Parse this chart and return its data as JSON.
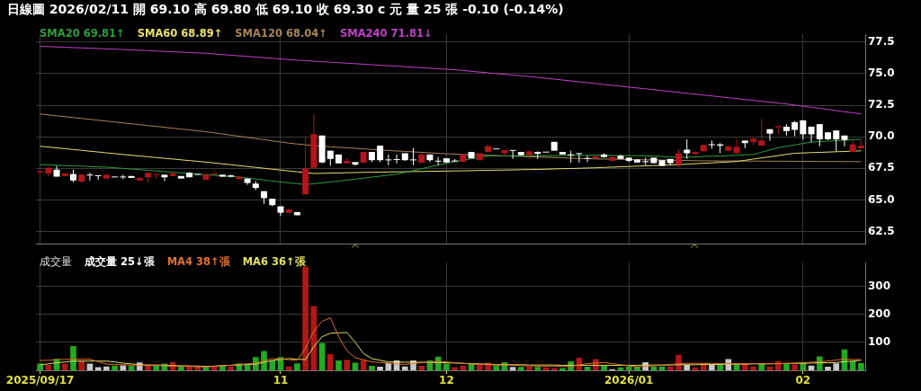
{
  "chart_data": [
    {
      "type": "candlestick",
      "title": "日線圖 2026/02/11 開 69.10 高 69.80 低 69.10 收 69.30 c 元 量 25 張 -0.10 (-0.14%)",
      "categories": [
        "2025/09/17",
        null,
        null,
        null,
        null,
        null,
        null,
        null,
        null,
        null,
        null,
        null,
        null,
        null,
        null,
        null,
        null,
        null,
        null,
        null,
        null,
        null,
        null,
        null,
        null,
        null,
        null,
        null,
        null,
        "11",
        null,
        null,
        null,
        null,
        null,
        null,
        null,
        null,
        null,
        null,
        null,
        null,
        null,
        null,
        null,
        null,
        null,
        null,
        null,
        "12",
        null,
        null,
        null,
        null,
        null,
        null,
        null,
        null,
        null,
        null,
        null,
        null,
        null,
        null,
        null,
        null,
        null,
        null,
        null,
        null,
        null,
        "2026/01",
        null,
        null,
        null,
        null,
        null,
        null,
        null,
        null,
        null,
        null,
        null,
        null,
        null,
        null,
        null,
        null,
        null,
        null,
        null,
        null,
        "02",
        null,
        null,
        null,
        null,
        null,
        null,
        null
      ],
      "ohlc": [
        [
          67.2,
          67.3,
          67.1,
          67.3
        ],
        [
          67.1,
          67.6,
          66.9,
          67.55
        ],
        [
          67.4,
          67.7,
          66.85,
          66.85
        ],
        [
          66.9,
          67.1,
          66.9,
          67.1
        ],
        [
          67.05,
          67.4,
          66.4,
          66.55
        ],
        [
          66.45,
          67.1,
          66.4,
          67.0
        ],
        [
          67.0,
          67.15,
          66.55,
          66.95
        ],
        [
          66.95,
          66.95,
          66.6,
          66.9
        ],
        [
          66.7,
          67.0,
          66.7,
          67.0
        ],
        [
          66.85,
          66.85,
          66.8,
          66.8
        ],
        [
          66.85,
          67.0,
          66.65,
          66.8
        ],
        [
          66.9,
          66.9,
          66.75,
          66.75
        ],
        [
          66.55,
          66.8,
          66.5,
          66.75
        ],
        [
          66.8,
          67.2,
          66.4,
          67.15
        ],
        [
          67.0,
          67.1,
          66.7,
          67.05
        ],
        [
          67.0,
          67.0,
          66.5,
          66.8
        ],
        [
          66.9,
          67.2,
          66.9,
          67.1
        ],
        [
          66.9,
          66.9,
          66.7,
          66.7
        ],
        [
          67.15,
          67.2,
          66.8,
          66.8
        ],
        [
          67.05,
          67.05,
          67.0,
          67.0
        ],
        [
          66.6,
          67.15,
          66.6,
          67.0
        ],
        [
          67.0,
          67.1,
          67.0,
          67.1
        ],
        [
          67.0,
          67.0,
          66.85,
          66.85
        ],
        [
          66.95,
          67.0,
          66.8,
          66.85
        ],
        [
          66.65,
          66.9,
          66.65,
          66.85
        ],
        [
          66.7,
          66.7,
          66.2,
          66.35
        ],
        [
          66.3,
          66.5,
          65.8,
          65.95
        ],
        [
          65.7,
          65.7,
          64.7,
          65.15
        ],
        [
          65.1,
          65.1,
          64.5,
          64.6
        ],
        [
          64.5,
          64.5,
          63.75,
          64.0
        ],
        [
          64.0,
          64.3,
          64.0,
          64.25
        ],
        [
          64.05,
          64.05,
          63.8,
          63.8
        ],
        [
          65.45,
          70.0,
          65.45,
          67.5
        ],
        [
          67.55,
          71.8,
          67.5,
          70.2
        ],
        [
          70.1,
          70.1,
          67.9,
          67.97
        ],
        [
          68.9,
          68.9,
          67.7,
          68.25
        ],
        [
          68.6,
          68.6,
          67.9,
          67.9
        ],
        [
          67.9,
          68.3,
          67.9,
          68.1
        ],
        [
          68.0,
          68.0,
          67.7,
          67.8
        ],
        [
          67.95,
          68.8,
          67.95,
          68.8
        ],
        [
          68.8,
          68.8,
          68.0,
          68.15
        ],
        [
          69.3,
          69.3,
          68.0,
          68.15
        ],
        [
          68.2,
          68.6,
          67.75,
          68.15
        ],
        [
          68.2,
          68.6,
          67.9,
          68.2
        ],
        [
          68.7,
          68.7,
          68.1,
          68.15
        ],
        [
          68.2,
          69.1,
          67.75,
          68.15
        ],
        [
          67.95,
          68.7,
          67.95,
          68.6
        ],
        [
          68.6,
          68.6,
          68.0,
          68.15
        ],
        [
          68.1,
          68.4,
          67.75,
          68.05
        ],
        [
          68.3,
          68.3,
          67.97,
          67.97
        ],
        [
          68.1,
          68.25,
          68.0,
          68.07
        ],
        [
          68.03,
          68.6,
          68.0,
          68.6
        ],
        [
          68.8,
          68.8,
          68.3,
          68.3
        ],
        [
          68.15,
          68.7,
          68.15,
          68.7
        ],
        [
          68.8,
          69.4,
          68.8,
          69.25
        ],
        [
          69.05,
          69.05,
          69.0,
          69.03
        ],
        [
          68.7,
          68.95,
          68.5,
          68.95
        ],
        [
          68.95,
          68.95,
          68.25,
          68.9
        ],
        [
          68.8,
          68.8,
          68.5,
          68.55
        ],
        [
          68.55,
          68.9,
          68.3,
          68.85
        ],
        [
          68.8,
          68.85,
          68.25,
          68.65
        ],
        [
          68.8,
          68.85,
          68.75,
          68.78
        ],
        [
          69.6,
          69.6,
          68.9,
          68.9
        ],
        [
          68.8,
          68.8,
          68.6,
          68.6
        ],
        [
          68.6,
          68.9,
          67.95,
          68.55
        ],
        [
          68.7,
          68.7,
          67.95,
          68.65
        ],
        [
          68.3,
          68.5,
          68.0,
          68.28
        ],
        [
          68.3,
          68.5,
          68.3,
          68.45
        ],
        [
          68.6,
          68.7,
          68.35,
          68.4
        ],
        [
          68.1,
          68.4,
          68.1,
          68.4
        ],
        [
          68.5,
          68.6,
          68.25,
          68.25
        ],
        [
          68.35,
          68.35,
          68.0,
          68.1
        ],
        [
          68.2,
          68.25,
          67.95,
          67.97
        ],
        [
          68.05,
          68.35,
          67.75,
          68.02
        ],
        [
          68.35,
          68.35,
          67.92,
          67.92
        ],
        [
          68.15,
          68.15,
          67.7,
          67.7
        ],
        [
          68.25,
          68.25,
          67.75,
          67.92
        ],
        [
          67.82,
          69.0,
          67.6,
          68.7
        ],
        [
          68.98,
          69.8,
          68.25,
          68.7
        ],
        [
          68.63,
          68.85,
          68.6,
          68.8
        ],
        [
          68.85,
          69.35,
          68.85,
          69.35
        ],
        [
          69.4,
          69.7,
          69.05,
          69.35
        ],
        [
          69.4,
          69.5,
          68.7,
          69.3
        ],
        [
          68.9,
          69.25,
          68.9,
          69.25
        ],
        [
          68.7,
          69.8,
          68.7,
          69.2
        ],
        [
          69.7,
          69.7,
          69.1,
          69.5
        ],
        [
          69.6,
          69.95,
          69.35,
          69.85
        ],
        [
          69.3,
          71.4,
          69.3,
          69.7
        ],
        [
          70.6,
          70.6,
          69.7,
          70.25
        ],
        [
          70.75,
          70.85,
          70.2,
          70.85
        ],
        [
          70.8,
          71.0,
          70.1,
          70.45
        ],
        [
          71.15,
          71.25,
          70.05,
          70.55
        ],
        [
          71.3,
          71.3,
          69.8,
          70.2
        ],
        [
          70.8,
          70.8,
          69.6,
          70.2
        ],
        [
          71.0,
          71.0,
          69.25,
          69.8
        ],
        [
          70.35,
          70.35,
          69.75,
          69.8
        ],
        [
          70.5,
          70.5,
          68.85,
          69.8
        ],
        [
          70.1,
          70.1,
          69.25,
          69.75
        ],
        [
          68.8,
          69.7,
          68.8,
          69.4
        ],
        [
          69.1,
          69.8,
          69.1,
          69.3
        ]
      ],
      "colors": [
        "#b4141c",
        "#b4141c",
        "#ffffff",
        "#b4141c",
        "#ffffff",
        "#b4141c",
        "#ffffff",
        "#ffffff",
        "#b4141c",
        "#ffffff",
        "#ffffff",
        "#ffffff",
        "#b4141c",
        "#b4141c",
        "#b4141c",
        "#ffffff",
        "#b4141c",
        "#ffffff",
        "#ffffff",
        "#ffffff",
        "#b4141c",
        "#b4141c",
        "#ffffff",
        "#ffffff",
        "#b4141c",
        "#ffffff",
        "#ffffff",
        "#ffffff",
        "#ffffff",
        "#ffffff",
        "#b4141c",
        "#ffffff",
        "#b4141c",
        "#b4141c",
        "#ffffff",
        "#ffffff",
        "#ffffff",
        "#b4141c",
        "#ffffff",
        "#b4141c",
        "#ffffff",
        "#ffffff",
        "#ffffff",
        "#ffffff",
        "#ffffff",
        "#ffffff",
        "#b4141c",
        "#ffffff",
        "#ffffff",
        "#ffffff",
        "#ffffff",
        "#b4141c",
        "#ffffff",
        "#b4141c",
        "#b4141c",
        "#ffffff",
        "#b4141c",
        "#ffffff",
        "#ffffff",
        "#b4141c",
        "#ffffff",
        "#ffffff",
        "#ffffff",
        "#ffffff",
        "#ffffff",
        "#ffffff",
        "#ffffff",
        "#b4141c",
        "#ffffff",
        "#b4141c",
        "#ffffff",
        "#ffffff",
        "#ffffff",
        "#ffffff",
        "#ffffff",
        "#ffffff",
        "#ffffff",
        "#b4141c",
        "#ffffff",
        "#b4141c",
        "#b4141c",
        "#ffffff",
        "#ffffff",
        "#b4141c",
        "#b4141c",
        "#ffffff",
        "#b4141c",
        "#b4141c",
        "#ffffff",
        "#b4141c",
        "#ffffff",
        "#ffffff",
        "#ffffff",
        "#ffffff",
        "#ffffff",
        "#ffffff",
        "#ffffff",
        "#ffffff",
        "#b4141c",
        "#b4141c"
      ],
      "series": [
        {
          "name": "SMA20 69.81↑",
          "type": "line",
          "color": "#2e9e3e",
          "values": [
            67.8,
            67.78,
            67.75,
            67.72,
            67.7,
            67.68,
            67.65,
            67.62,
            67.6,
            67.55,
            67.5,
            67.45,
            67.4,
            67.35,
            67.3,
            67.25,
            67.2,
            67.15,
            67.1,
            67.05,
            67.0,
            66.95,
            66.9,
            66.86,
            66.82,
            66.74,
            66.66,
            66.58,
            66.5,
            66.43,
            66.36,
            66.29,
            66.22,
            66.29,
            66.36,
            66.43,
            66.5,
            66.58,
            66.65,
            66.73,
            66.81,
            66.89,
            66.96,
            67.04,
            67.19,
            67.33,
            67.48,
            67.62,
            67.76,
            67.9,
            68.04,
            68.15,
            68.26,
            68.37,
            68.48,
            68.48,
            68.49,
            68.49,
            68.5,
            68.5,
            68.5,
            68.51,
            68.51,
            68.52,
            68.52,
            68.53,
            68.53,
            68.54,
            68.53,
            68.52,
            68.51,
            68.51,
            68.5,
            68.49,
            68.48,
            68.44,
            68.41,
            68.37,
            68.39,
            68.41,
            68.44,
            68.46,
            68.48,
            68.51,
            68.54,
            68.57,
            68.6,
            68.78,
            68.96,
            69.14,
            69.25,
            69.36,
            69.47,
            69.58,
            69.62,
            69.66,
            69.7,
            69.73,
            69.77,
            69.81
          ]
        },
        {
          "name": "SMA60 68.89↑",
          "type": "line",
          "color": "#e8e070",
          "values": [
            69.25,
            69.19,
            69.12,
            69.06,
            68.99,
            68.93,
            68.86,
            68.8,
            68.73,
            68.67,
            68.6,
            68.54,
            68.48,
            68.42,
            68.36,
            68.3,
            68.24,
            68.18,
            68.12,
            68.06,
            68.0,
            67.93,
            67.86,
            67.79,
            67.72,
            67.65,
            67.58,
            67.51,
            67.44,
            67.37,
            67.3,
            67.23,
            67.17,
            67.1,
            67.11,
            67.13,
            67.14,
            67.16,
            67.17,
            67.19,
            67.2,
            67.21,
            67.22,
            67.23,
            67.24,
            67.25,
            67.26,
            67.27,
            67.28,
            67.29,
            67.3,
            67.31,
            67.32,
            67.34,
            67.35,
            67.36,
            67.37,
            67.38,
            67.4,
            67.41,
            67.42,
            67.44,
            67.46,
            67.48,
            67.49,
            67.51,
            67.53,
            67.55,
            67.58,
            67.6,
            67.63,
            67.65,
            67.68,
            67.7,
            67.73,
            67.75,
            67.78,
            67.8,
            67.84,
            67.87,
            67.91,
            67.94,
            67.98,
            68.01,
            68.05,
            68.14,
            68.24,
            68.33,
            68.42,
            68.51,
            68.61,
            68.7,
            68.72,
            68.75,
            68.77,
            68.79,
            68.82,
            68.84,
            68.87,
            68.89
          ]
        },
        {
          "name": "SMA120 68.04↑",
          "type": "line",
          "color": "#a8845c",
          "values": [
            71.8,
            71.73,
            71.66,
            71.59,
            71.52,
            71.45,
            71.38,
            71.31,
            71.24,
            71.17,
            71.1,
            71.03,
            70.96,
            70.89,
            70.82,
            70.75,
            70.68,
            70.61,
            70.54,
            70.47,
            70.4,
            70.31,
            70.22,
            70.13,
            70.04,
            69.95,
            69.86,
            69.77,
            69.68,
            69.59,
            69.5,
            69.43,
            69.37,
            69.3,
            69.26,
            69.21,
            69.17,
            69.13,
            69.09,
            69.04,
            69.0,
            68.96,
            68.92,
            68.88,
            68.84,
            68.81,
            68.77,
            68.73,
            68.69,
            68.65,
            68.63,
            68.6,
            68.58,
            68.56,
            68.54,
            68.52,
            68.49,
            68.47,
            68.45,
            68.42,
            68.4,
            68.38,
            68.36,
            68.34,
            68.31,
            68.29,
            68.27,
            68.25,
            68.24,
            68.23,
            68.22,
            68.2,
            68.19,
            68.18,
            68.17,
            68.16,
            68.15,
            68.13,
            68.12,
            68.11,
            68.1,
            68.1,
            68.09,
            68.09,
            68.09,
            68.08,
            68.08,
            68.08,
            68.07,
            68.07,
            68.07,
            68.06,
            68.06,
            68.06,
            68.05,
            68.05,
            68.05,
            68.04,
            68.04,
            68.04
          ]
        },
        {
          "name": "SMA240 71.81↓",
          "type": "line",
          "color": "#c040c8",
          "values": [
            77.15,
            77.13,
            77.1,
            77.08,
            77.05,
            77.03,
            77.0,
            76.98,
            76.95,
            76.93,
            76.9,
            76.87,
            76.84,
            76.81,
            76.78,
            76.75,
            76.72,
            76.69,
            76.66,
            76.63,
            76.6,
            76.55,
            76.5,
            76.45,
            76.4,
            76.35,
            76.3,
            76.25,
            76.2,
            76.15,
            76.1,
            76.06,
            76.02,
            75.98,
            75.94,
            75.9,
            75.86,
            75.82,
            75.78,
            75.74,
            75.7,
            75.66,
            75.62,
            75.58,
            75.54,
            75.5,
            75.46,
            75.42,
            75.38,
            75.34,
            75.3,
            75.24,
            75.18,
            75.12,
            75.06,
            75.0,
            74.94,
            74.88,
            74.82,
            74.76,
            74.7,
            74.63,
            74.56,
            74.49,
            74.42,
            74.35,
            74.28,
            74.21,
            74.14,
            74.07,
            74.0,
            73.93,
            73.86,
            73.79,
            73.72,
            73.65,
            73.58,
            73.51,
            73.44,
            73.37,
            73.3,
            73.23,
            73.16,
            73.09,
            73.02,
            72.95,
            72.88,
            72.81,
            72.74,
            72.67,
            72.6,
            72.51,
            72.42,
            72.34,
            72.25,
            72.16,
            72.07,
            71.98,
            71.9,
            71.81
          ]
        }
      ],
      "ylim": [
        61.5,
        78.1
      ],
      "yticks": [
        {
          "value": 62.5,
          "label": "62.5"
        },
        {
          "value": 65,
          "label": "65.0"
        },
        {
          "value": 67.5,
          "label": "67.5"
        },
        {
          "value": 70,
          "label": "70.0"
        },
        {
          "value": 72.5,
          "label": "72.5"
        },
        {
          "value": 75,
          "label": "75.0"
        },
        {
          "value": 77.5,
          "label": "77.5"
        }
      ],
      "grid": true,
      "legend": "top left",
      "tick_labels": "y"
    },
    {
      "type": "bar",
      "title": "成交量",
      "annotations": [
        "成交量 25↓張"
      ],
      "categories": [
        "2025/09/17",
        null,
        null,
        null,
        null,
        null,
        null,
        null,
        null,
        null,
        null,
        null,
        null,
        null,
        null,
        null,
        null,
        null,
        null,
        null,
        null,
        null,
        null,
        null,
        null,
        null,
        null,
        null,
        null,
        "11",
        null,
        null,
        null,
        null,
        null,
        null,
        null,
        null,
        null,
        null,
        null,
        null,
        null,
        null,
        null,
        null,
        null,
        null,
        null,
        "12",
        null,
        null,
        null,
        null,
        null,
        null,
        null,
        null,
        null,
        null,
        null,
        null,
        null,
        null,
        null,
        null,
        null,
        null,
        null,
        null,
        null,
        "2026/01",
        null,
        null,
        null,
        null,
        null,
        null,
        null,
        null,
        null,
        null,
        null,
        null,
        null,
        null,
        null,
        null,
        null,
        null,
        null,
        null,
        "02",
        null,
        null,
        null,
        null,
        null,
        null,
        null
      ],
      "series": [
        {
          "type": "bar",
          "values": [
            23,
            18,
            40,
            23,
            86,
            34,
            23,
            10,
            13,
            16,
            17,
            16,
            27,
            19,
            15,
            23,
            29,
            14,
            12,
            15,
            10,
            13,
            15,
            13,
            24,
            19,
            46,
            68,
            34,
            46,
            13,
            24,
            370,
            229,
            97,
            57,
            34,
            37,
            26,
            36,
            15,
            12,
            25,
            34,
            13,
            34,
            15,
            34,
            48,
            23,
            10,
            16,
            22,
            20,
            26,
            17,
            28,
            11,
            11,
            13,
            11,
            9,
            7,
            7,
            31,
            44,
            12,
            39,
            16,
            3,
            9,
            13,
            13,
            28,
            13,
            13,
            13,
            54,
            18,
            9,
            24,
            18,
            20,
            39,
            20,
            23,
            13,
            24,
            13,
            32,
            26,
            20,
            28,
            16,
            49,
            12,
            24,
            74,
            31,
            25
          ],
          "colors": [
            "#22aa22",
            "#b01818",
            "#22aa22",
            "#b01818",
            "#22aa22",
            "#b01818",
            "#c8c8c8",
            "#c8c8c8",
            "#c8c8c8",
            "#22aa22",
            "#c8c8c8",
            "#22aa22",
            "#c8c8c8",
            "#b01818",
            "#22aa22",
            "#22aa22",
            "#b01818",
            "#22aa22",
            "#b01818",
            "#b01818",
            "#22aa22",
            "#b01818",
            "#22aa22",
            "#b01818",
            "#22aa22",
            "#22aa22",
            "#22aa22",
            "#22aa22",
            "#22aa22",
            "#22aa22",
            "#b01818",
            "#22aa22",
            "#b01818",
            "#b01818",
            "#22aa22",
            "#b01818",
            "#22aa22",
            "#b01818",
            "#22aa22",
            "#b01818",
            "#22aa22",
            "#c8c8c8",
            "#c8c8c8",
            "#c8c8c8",
            "#c8c8c8",
            "#c8c8c8",
            "#b01818",
            "#22aa22",
            "#22aa22",
            "#22aa22",
            "#b01818",
            "#b01818",
            "#22aa22",
            "#b01818",
            "#b01818",
            "#22aa22",
            "#22aa22",
            "#c8c8c8",
            "#22aa22",
            "#b01818",
            "#22aa22",
            "#b01818",
            "#b01818",
            "#22aa22",
            "#22aa22",
            "#b01818",
            "#22aa22",
            "#b01818",
            "#22aa22",
            "#c8c8c8",
            "#22aa22",
            "#22aa22",
            "#22aa22",
            "#c8c8c8",
            "#22aa22",
            "#22aa22",
            "#b01818",
            "#b01818",
            "#c8c8c8",
            "#b01818",
            "#b01818",
            "#c8c8c8",
            "#22aa22",
            "#c8c8c8",
            "#22aa22",
            "#b01818",
            "#b01818",
            "#22aa22",
            "#b01818",
            "#b01818",
            "#22aa22",
            "#b01818",
            "#22aa22",
            "#c8c8c8",
            "#22aa22",
            "#c8c8c8",
            "#c8c8c8",
            "#22aa22",
            "#22aa22",
            "#22aa22"
          ]
        },
        {
          "name": "MA4 38↑張",
          "type": "line",
          "color": "#e07030",
          "values": [
            35,
            36,
            38,
            39,
            40,
            40,
            40,
            31,
            22,
            21,
            20,
            19,
            18,
            17,
            17,
            16,
            15,
            14,
            14,
            13,
            12,
            14,
            16,
            18,
            21,
            23,
            25,
            34,
            42,
            40,
            38,
            35,
            80,
            140,
            175,
            188,
            120,
            70,
            45,
            38,
            30,
            28,
            26,
            23,
            21,
            24,
            27,
            29,
            32,
            30,
            27,
            25,
            22,
            21,
            20,
            19,
            19,
            18,
            17,
            16,
            15,
            15,
            15,
            14,
            14,
            19,
            24,
            26,
            28,
            24,
            20,
            16,
            12,
            14,
            16,
            18,
            21,
            23,
            25,
            25,
            25,
            25,
            24,
            24,
            24,
            24,
            24,
            24,
            24,
            24,
            24,
            26,
            27,
            29,
            30,
            33,
            37,
            40,
            39,
            38
          ]
        },
        {
          "name": "MA6 36↑張",
          "type": "line",
          "color": "#e0e060",
          "values": [
            20,
            23,
            27,
            30,
            33,
            33,
            33,
            33,
            33,
            30,
            26,
            23,
            20,
            19,
            19,
            18,
            17,
            16,
            16,
            15,
            14,
            15,
            17,
            18,
            19,
            21,
            22,
            29,
            35,
            39,
            42,
            40,
            38,
            85,
            120,
            133,
            134,
            135,
            100,
            60,
            42,
            36,
            30,
            30,
            29,
            29,
            29,
            28,
            28,
            27,
            26,
            25,
            24,
            23,
            22,
            21,
            20,
            20,
            20,
            19,
            19,
            19,
            19,
            18,
            18,
            18,
            18,
            18,
            18,
            18,
            18,
            18,
            18,
            19,
            19,
            19,
            19,
            20,
            20,
            20,
            21,
            21,
            21,
            22,
            22,
            22,
            23,
            23,
            23,
            24,
            24,
            25,
            25,
            26,
            27,
            27,
            28,
            31,
            33,
            36
          ]
        }
      ],
      "ylim": [
        0,
        385
      ],
      "yticks": [
        100,
        200,
        300
      ],
      "grid": true,
      "legend": "top left"
    }
  ]
}
